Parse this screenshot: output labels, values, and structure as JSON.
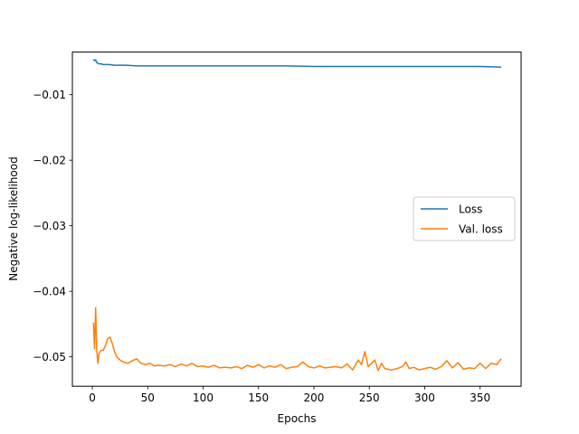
{
  "chart_data": {
    "type": "line",
    "title": "",
    "xlabel": "Epochs",
    "ylabel": "Negative log-likelihood",
    "xlim": [
      -18,
      387
    ],
    "ylim": [
      -0.0545,
      -0.0035
    ],
    "xticks": [
      0,
      50,
      100,
      150,
      200,
      250,
      300,
      350
    ],
    "yticks": [
      -0.05,
      -0.04,
      -0.03,
      -0.02,
      -0.01
    ],
    "ytick_labels": [
      "−0.05",
      "−0.04",
      "−0.03",
      "−0.02",
      "−0.01"
    ],
    "grid": false,
    "legend_position": "center-right",
    "series": [
      {
        "name": "Loss",
        "color": "#1f77b4",
        "x": [
          1,
          2,
          3,
          4,
          5,
          6,
          8,
          10,
          15,
          20,
          30,
          40,
          50,
          60,
          75,
          100,
          125,
          150,
          175,
          200,
          225,
          250,
          275,
          300,
          325,
          350,
          369
        ],
        "y": [
          -0.0046,
          -0.0048,
          -0.0047,
          -0.0051,
          -0.0052,
          -0.0053,
          -0.0053,
          -0.0054,
          -0.0054,
          -0.0055,
          -0.0055,
          -0.0056,
          -0.0056,
          -0.0056,
          -0.0056,
          -0.0056,
          -0.0056,
          -0.0056,
          -0.0056,
          -0.0057,
          -0.0057,
          -0.0057,
          -0.0057,
          -0.0057,
          -0.0057,
          -0.0057,
          -0.0058
        ]
      },
      {
        "name": "Val. loss",
        "color": "#ff7f0e",
        "x": [
          1,
          2,
          3,
          4,
          5,
          6,
          8,
          10,
          12,
          14,
          16,
          18,
          20,
          22,
          25,
          28,
          32,
          36,
          40,
          44,
          48,
          52,
          56,
          60,
          65,
          70,
          75,
          80,
          85,
          90,
          95,
          100,
          105,
          110,
          115,
          120,
          125,
          130,
          135,
          140,
          145,
          150,
          155,
          160,
          165,
          170,
          175,
          180,
          185,
          190,
          195,
          200,
          205,
          210,
          215,
          220,
          225,
          230,
          235,
          240,
          243,
          246,
          249,
          252,
          255,
          258,
          261,
          264,
          267,
          270,
          275,
          280,
          283,
          286,
          290,
          295,
          300,
          305,
          310,
          315,
          320,
          325,
          330,
          335,
          340,
          345,
          350,
          355,
          360,
          365,
          369
        ],
        "y": [
          -0.0448,
          -0.0488,
          -0.0425,
          -0.049,
          -0.051,
          -0.0495,
          -0.049,
          -0.049,
          -0.0482,
          -0.0472,
          -0.047,
          -0.048,
          -0.0492,
          -0.05,
          -0.0505,
          -0.0508,
          -0.051,
          -0.0506,
          -0.0503,
          -0.051,
          -0.0512,
          -0.051,
          -0.0514,
          -0.0513,
          -0.0514,
          -0.0512,
          -0.0515,
          -0.0511,
          -0.0514,
          -0.051,
          -0.0515,
          -0.0514,
          -0.0516,
          -0.0513,
          -0.0517,
          -0.0516,
          -0.0517,
          -0.0515,
          -0.0518,
          -0.0513,
          -0.0516,
          -0.0512,
          -0.0517,
          -0.0514,
          -0.0516,
          -0.0512,
          -0.0518,
          -0.0516,
          -0.0515,
          -0.0508,
          -0.0515,
          -0.0517,
          -0.0514,
          -0.0517,
          -0.0516,
          -0.0515,
          -0.0517,
          -0.0511,
          -0.052,
          -0.0505,
          -0.0512,
          -0.0492,
          -0.0515,
          -0.051,
          -0.0505,
          -0.0521,
          -0.051,
          -0.0518,
          -0.0519,
          -0.052,
          -0.0518,
          -0.0515,
          -0.0508,
          -0.0518,
          -0.0516,
          -0.052,
          -0.0518,
          -0.0516,
          -0.0519,
          -0.0515,
          -0.0506,
          -0.0517,
          -0.0509,
          -0.0519,
          -0.0517,
          -0.0518,
          -0.051,
          -0.0518,
          -0.051,
          -0.0512,
          -0.0503
        ]
      }
    ]
  }
}
